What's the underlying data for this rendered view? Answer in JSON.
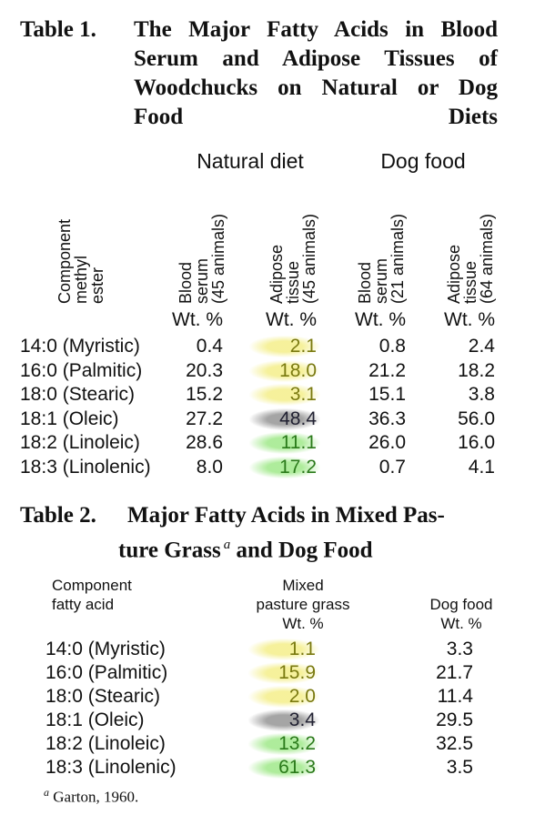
{
  "table1": {
    "label": "Table 1.",
    "caption_lines": [
      "The Major Fatty Acids in Blood",
      "Serum and Adipose Tissues of",
      "Woodchucks on Natural or Dog",
      "Food Diets"
    ],
    "groups": [
      "Natural diet",
      "Dog food"
    ],
    "row_header": [
      "Component",
      "methyl",
      "ester"
    ],
    "columns": [
      [
        "Blood",
        "serum",
        "(45 animals)"
      ],
      [
        "Adipose",
        "tissue",
        "(45 animals)"
      ],
      [
        "Blood",
        "serum",
        "(21 animals)"
      ],
      [
        "Adipose",
        "tissue",
        "(64 animals)"
      ]
    ],
    "unit": "Wt. %",
    "rows": [
      [
        "14:0 (Myristic)",
        "0.4",
        "2.1",
        "0.8",
        "2.4"
      ],
      [
        "16:0 (Palmitic)",
        "20.3",
        "18.0",
        "21.2",
        "18.2"
      ],
      [
        "18:0 (Stearic)",
        "15.2",
        "3.1",
        "15.1",
        "3.8"
      ],
      [
        "18:1 (Oleic)",
        "27.2",
        "48.4",
        "36.3",
        "56.0"
      ],
      [
        "18:2 (Linoleic)",
        "28.6",
        "11.1",
        "26.0",
        "16.0"
      ],
      [
        "18:3 (Linolenic)",
        "8.0",
        "17.2",
        "0.7",
        "4.1"
      ]
    ]
  },
  "table2": {
    "label": "Table 2.",
    "caption_lines": [
      "Major Fatty Acids in Mixed Pas-",
      "ture Grass"
    ],
    "footnote_marker": "a",
    "caption_end": "and Dog Food",
    "row_header": [
      "Component",
      "fatty acid"
    ],
    "columns": [
      [
        "Mixed",
        "pasture grass",
        "Wt. %"
      ],
      [
        "Dog food",
        "Wt. %"
      ]
    ],
    "rows": [
      [
        "14:0 (Myristic)",
        "1.1",
        "3.3"
      ],
      [
        "16:0 (Palmitic)",
        "15.9",
        "21.7"
      ],
      [
        "18:0 (Stearic)",
        "2.0",
        "11.4"
      ],
      [
        "18:1 (Oleic)",
        "3.4",
        "29.5"
      ],
      [
        "18:2 (Linoleic)",
        "13.2",
        "32.5"
      ],
      [
        "18:3 (Linolenic)",
        "61.3",
        "3.5"
      ]
    ],
    "footnote": "Garton, 1960."
  }
}
